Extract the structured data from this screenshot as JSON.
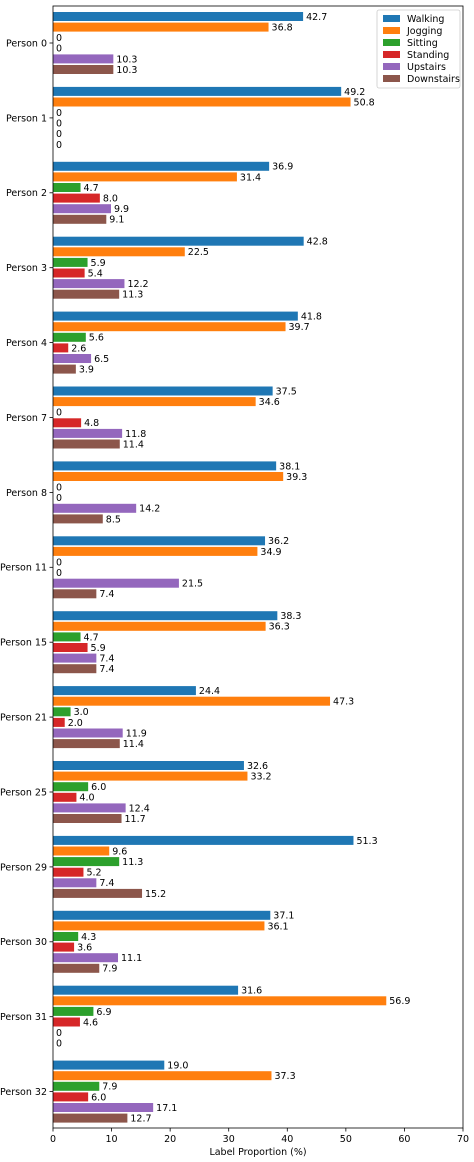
{
  "colors": {
    "Walking": "#1f77b4",
    "Jogging": "#ff7f0e",
    "Sitting": "#2ca02c",
    "Standing": "#d62728",
    "Upstairs": "#9467bd",
    "Downstairs": "#8c564b"
  },
  "chart_data": {
    "type": "bar",
    "orientation": "horizontal",
    "title": "",
    "xlabel": "Label Proportion (%)",
    "ylabel": "",
    "xlim": [
      0,
      70
    ],
    "xticks": [
      0,
      10,
      20,
      30,
      40,
      50,
      60,
      70
    ],
    "grid": false,
    "legend_position": "top-right",
    "categories": [
      "Person 0",
      "Person 1",
      "Person 2",
      "Person 3",
      "Person 4",
      "Person 7",
      "Person 8",
      "Person 11",
      "Person 15",
      "Person 21",
      "Person 25",
      "Person 29",
      "Person 30",
      "Person 31",
      "Person 32"
    ],
    "series": [
      {
        "name": "Walking",
        "values": [
          42.7,
          49.2,
          36.9,
          42.8,
          41.8,
          37.5,
          38.1,
          36.2,
          38.3,
          24.4,
          32.6,
          51.3,
          37.1,
          31.6,
          19.0
        ]
      },
      {
        "name": "Jogging",
        "values": [
          36.8,
          50.8,
          31.4,
          22.5,
          39.7,
          34.6,
          39.3,
          34.9,
          36.3,
          47.3,
          33.2,
          9.6,
          36.1,
          56.9,
          37.3
        ]
      },
      {
        "name": "Sitting",
        "values": [
          0,
          0,
          4.7,
          5.9,
          5.6,
          0,
          0,
          0,
          4.7,
          3.0,
          6.0,
          11.3,
          4.3,
          6.9,
          7.9
        ]
      },
      {
        "name": "Standing",
        "values": [
          0,
          0,
          8.0,
          5.4,
          2.6,
          4.8,
          0,
          0,
          5.9,
          2.0,
          4.0,
          5.2,
          3.6,
          4.6,
          6.0
        ]
      },
      {
        "name": "Upstairs",
        "values": [
          10.3,
          0,
          9.9,
          12.2,
          6.5,
          11.8,
          14.2,
          21.5,
          7.4,
          11.9,
          12.4,
          7.4,
          11.1,
          0,
          17.1
        ]
      },
      {
        "name": "Downstairs",
        "values": [
          10.3,
          0,
          9.1,
          11.3,
          3.9,
          11.4,
          8.5,
          7.4,
          7.4,
          11.4,
          11.7,
          15.2,
          7.9,
          0,
          12.7
        ]
      }
    ],
    "value_labels": [
      [
        "42.7",
        "36.8",
        "0",
        "0",
        "10.3",
        "10.3"
      ],
      [
        "49.2",
        "50.8",
        "0",
        "0",
        "0",
        "0"
      ],
      [
        "36.9",
        "31.4",
        "4.7",
        "8.0",
        "9.9",
        "9.1"
      ],
      [
        "42.8",
        "22.5",
        "5.9",
        "5.4",
        "12.2",
        "11.3"
      ],
      [
        "41.8",
        "39.7",
        "5.6",
        "2.6",
        "6.5",
        "3.9"
      ],
      [
        "37.5",
        "34.6",
        "0",
        "4.8",
        "11.8",
        "11.4"
      ],
      [
        "38.1",
        "39.3",
        "0",
        "0",
        "14.2",
        "8.5"
      ],
      [
        "36.2",
        "34.9",
        "0",
        "0",
        "21.5",
        "7.4"
      ],
      [
        "38.3",
        "36.3",
        "4.7",
        "5.9",
        "7.4",
        "7.4"
      ],
      [
        "24.4",
        "47.3",
        "3.0",
        "2.0",
        "11.9",
        "11.4"
      ],
      [
        "32.6",
        "33.2",
        "6.0",
        "4.0",
        "12.4",
        "11.7"
      ],
      [
        "51.3",
        "9.6",
        "11.3",
        "5.2",
        "7.4",
        "15.2"
      ],
      [
        "37.1",
        "36.1",
        "4.3",
        "3.6",
        "11.1",
        "7.9"
      ],
      [
        "31.6",
        "56.9",
        "6.9",
        "4.6",
        "0",
        "0"
      ],
      [
        "19.0",
        "37.3",
        "7.9",
        "6.0",
        "17.1",
        "12.7"
      ]
    ]
  }
}
